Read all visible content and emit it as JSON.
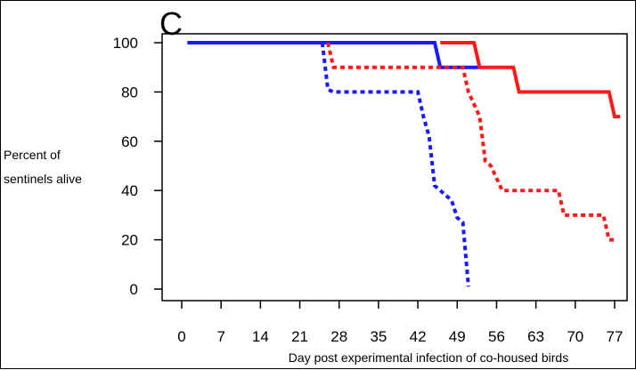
{
  "panel_label": "C",
  "chart_data": {
    "type": "line",
    "title": "",
    "xlabel": "Day post experimental infection of co-housed birds",
    "ylabel_lines": [
      "Percent of",
      "sentinels alive"
    ],
    "xlim": [
      0,
      78
    ],
    "ylim": [
      0,
      100
    ],
    "xticks": [
      0,
      7,
      14,
      21,
      28,
      35,
      42,
      49,
      56,
      63,
      70,
      77
    ],
    "yticks": [
      0,
      20,
      40,
      60,
      80,
      100
    ],
    "grid": false,
    "series": [
      {
        "name": "blue-solid",
        "color": "#1a1aff",
        "dash": "solid",
        "points": [
          [
            1,
            100
          ],
          [
            45,
            100
          ],
          [
            46,
            90
          ],
          [
            53,
            90
          ]
        ]
      },
      {
        "name": "red-solid",
        "color": "#ff1a1a",
        "dash": "solid",
        "points": [
          [
            46,
            100
          ],
          [
            52,
            100
          ],
          [
            53,
            90
          ],
          [
            59,
            90
          ],
          [
            60,
            80
          ],
          [
            76,
            80
          ],
          [
            77,
            70
          ],
          [
            78,
            70
          ]
        ]
      },
      {
        "name": "red-dotted",
        "color": "#ff1a1a",
        "dash": "dotted",
        "points": [
          [
            26,
            100
          ],
          [
            27,
            90
          ],
          [
            50,
            90
          ],
          [
            51,
            80
          ],
          [
            53,
            70
          ],
          [
            54,
            52
          ],
          [
            55,
            50
          ],
          [
            57,
            40
          ],
          [
            67,
            40
          ],
          [
            68,
            30
          ],
          [
            75,
            30
          ],
          [
            76,
            20
          ],
          [
            77,
            20
          ]
        ]
      },
      {
        "name": "blue-dotted",
        "color": "#1a1aff",
        "dash": "dotted",
        "points": [
          [
            25,
            100
          ],
          [
            26,
            81
          ],
          [
            27,
            80
          ],
          [
            42,
            80
          ],
          [
            43,
            70
          ],
          [
            44,
            62
          ],
          [
            45,
            42
          ],
          [
            46,
            40
          ],
          [
            48,
            36
          ],
          [
            49,
            29
          ],
          [
            50,
            27
          ],
          [
            51,
            1
          ]
        ]
      }
    ]
  }
}
